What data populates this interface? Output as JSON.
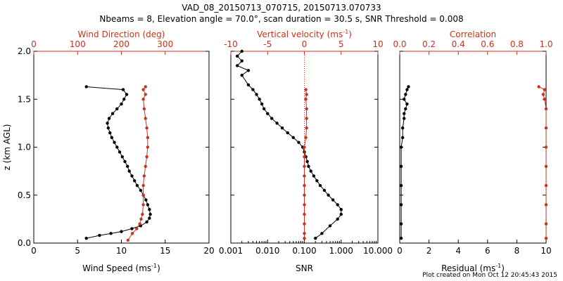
{
  "header": {
    "title": "VAD_08_20150713_070715, 20150713.070733",
    "subtitle": "Nbeams = 8, Elevation angle = 70.0°, scan duration = 30.5 s, SNR Threshold = 0.008"
  },
  "footer": {
    "credit": "Plot created on Mon Oct 12 20:45:43 2015"
  },
  "colors": {
    "black": "#000000",
    "red": "#c8321e",
    "axis": "#000000"
  },
  "chart_data": [
    {
      "type": "line",
      "ylabel": "z (km AGL)",
      "ylim": [
        0,
        2.0
      ],
      "yticks": [
        "0.0",
        "0.5",
        "1.0",
        "1.5",
        "2.0"
      ],
      "bottom_axis": {
        "label": "Wind Speed (ms",
        "sup": "-1",
        "close": ")",
        "lim": [
          0,
          20
        ],
        "ticks": [
          "0",
          "5",
          "10",
          "15",
          "20"
        ]
      },
      "top_axis": {
        "label": "Wind Direction (deg)",
        "lim": [
          0,
          400
        ],
        "ticks": [
          "0",
          "100",
          "200",
          "300"
        ]
      },
      "series": [
        {
          "color": "black",
          "axis": "bottom",
          "points": [
            [
              6.0,
              0.05
            ],
            [
              7.5,
              0.08
            ],
            [
              8.8,
              0.1
            ],
            [
              10.0,
              0.12
            ],
            [
              11.2,
              0.15
            ],
            [
              12.2,
              0.18
            ],
            [
              12.9,
              0.22
            ],
            [
              13.2,
              0.26
            ],
            [
              13.3,
              0.3
            ],
            [
              13.2,
              0.35
            ],
            [
              13.0,
              0.4
            ],
            [
              12.8,
              0.45
            ],
            [
              12.5,
              0.5
            ],
            [
              12.2,
              0.55
            ],
            [
              11.8,
              0.6
            ],
            [
              11.5,
              0.65
            ],
            [
              11.2,
              0.7
            ],
            [
              10.9,
              0.75
            ],
            [
              10.7,
              0.8
            ],
            [
              10.4,
              0.85
            ],
            [
              10.1,
              0.9
            ],
            [
              9.8,
              0.95
            ],
            [
              9.5,
              1.0
            ],
            [
              9.2,
              1.05
            ],
            [
              8.9,
              1.1
            ],
            [
              8.7,
              1.15
            ],
            [
              8.5,
              1.2
            ],
            [
              8.4,
              1.25
            ],
            [
              8.6,
              1.3
            ],
            [
              9.0,
              1.35
            ],
            [
              9.5,
              1.4
            ],
            [
              10.0,
              1.45
            ],
            [
              10.3,
              1.5
            ],
            [
              10.6,
              1.55
            ],
            [
              10.2,
              1.6
            ],
            [
              6.0,
              1.63
            ]
          ]
        },
        {
          "color": "red",
          "axis": "top",
          "points": [
            [
              215,
              0.03
            ],
            [
              225,
              0.1
            ],
            [
              235,
              0.15
            ],
            [
              242,
              0.2
            ],
            [
              245,
              0.25
            ],
            [
              248,
              0.3
            ],
            [
              250,
              0.4
            ],
            [
              250,
              0.5
            ],
            [
              250,
              0.6
            ],
            [
              252,
              0.7
            ],
            [
              255,
              0.8
            ],
            [
              258,
              0.9
            ],
            [
              260,
              1.0
            ],
            [
              260,
              1.1
            ],
            [
              258,
              1.2
            ],
            [
              255,
              1.3
            ],
            [
              252,
              1.4
            ],
            [
              250,
              1.5
            ],
            [
              255,
              1.55
            ],
            [
              250,
              1.6
            ],
            [
              255,
              1.63
            ]
          ]
        }
      ]
    },
    {
      "type": "line",
      "bottom_axis": {
        "label": "SNR",
        "lim": [
          0.001,
          10.0
        ],
        "log": true,
        "ticks": [
          "0.001",
          "0.010",
          "0.100",
          "1.000",
          "10.000"
        ]
      },
      "top_axis": {
        "label": "Vertical velocity (ms",
        "sup": "-1",
        "close": ")",
        "lim": [
          -10,
          10
        ],
        "ticks": [
          "-10",
          "-5",
          "0",
          "5",
          "10"
        ]
      },
      "series": [
        {
          "color": "black",
          "axis": "bottom",
          "points": [
            [
              0.2,
              0.05
            ],
            [
              0.3,
              0.1
            ],
            [
              0.5,
              0.18
            ],
            [
              0.8,
              0.25
            ],
            [
              1.0,
              0.3
            ],
            [
              1.0,
              0.35
            ],
            [
              0.8,
              0.4
            ],
            [
              0.6,
              0.45
            ],
            [
              0.45,
              0.5
            ],
            [
              0.35,
              0.55
            ],
            [
              0.27,
              0.6
            ],
            [
              0.22,
              0.65
            ],
            [
              0.18,
              0.7
            ],
            [
              0.15,
              0.75
            ],
            [
              0.13,
              0.8
            ],
            [
              0.12,
              0.85
            ],
            [
              0.11,
              0.9
            ],
            [
              0.1,
              0.95
            ],
            [
              0.09,
              1.0
            ],
            [
              0.07,
              1.05
            ],
            [
              0.05,
              1.1
            ],
            [
              0.035,
              1.15
            ],
            [
              0.025,
              1.2
            ],
            [
              0.018,
              1.25
            ],
            [
              0.013,
              1.3
            ],
            [
              0.01,
              1.35
            ],
            [
              0.008,
              1.4
            ],
            [
              0.007,
              1.45
            ],
            [
              0.006,
              1.5
            ],
            [
              0.005,
              1.55
            ],
            [
              0.004,
              1.6
            ],
            [
              0.003,
              1.65
            ],
            [
              0.002,
              1.75
            ],
            [
              0.003,
              1.8
            ],
            [
              0.0015,
              1.85
            ],
            [
              0.002,
              1.9
            ],
            [
              0.0015,
              1.95
            ],
            [
              0.002,
              2.0
            ]
          ]
        },
        {
          "color": "red",
          "axis": "top",
          "points": [
            [
              0,
              0.05
            ],
            [
              0,
              0.1
            ],
            [
              0,
              0.2
            ],
            [
              0,
              0.3
            ],
            [
              0,
              0.4
            ],
            [
              0,
              0.5
            ],
            [
              0,
              0.6
            ],
            [
              0,
              0.7
            ],
            [
              0,
              0.8
            ],
            [
              0,
              0.9
            ],
            [
              0,
              1.0
            ],
            [
              0.2,
              1.1
            ],
            [
              0.3,
              1.2
            ],
            [
              0.3,
              1.3
            ],
            [
              0.3,
              1.4
            ],
            [
              0.2,
              1.5
            ],
            [
              0.3,
              1.55
            ],
            [
              0.2,
              1.6
            ]
          ]
        }
      ]
    },
    {
      "type": "line",
      "bottom_axis": {
        "label": "Residual (ms",
        "sup": "-1",
        "close": ")",
        "lim": [
          0,
          10
        ],
        "ticks": [
          "0",
          "2",
          "4",
          "6",
          "8",
          "10"
        ]
      },
      "top_axis": {
        "label": "Correlation",
        "lim": [
          0,
          1.0
        ],
        "ticks": [
          "0.0",
          "0.2",
          "0.4",
          "0.6",
          "0.8",
          "1.0"
        ]
      },
      "series": [
        {
          "color": "black",
          "axis": "bottom",
          "points": [
            [
              0.1,
              0.05
            ],
            [
              0.1,
              0.2
            ],
            [
              0.1,
              0.4
            ],
            [
              0.1,
              0.6
            ],
            [
              0.1,
              0.8
            ],
            [
              0.1,
              1.0
            ],
            [
              0.2,
              1.1
            ],
            [
              0.2,
              1.2
            ],
            [
              0.3,
              1.3
            ],
            [
              0.3,
              1.35
            ],
            [
              0.4,
              1.4
            ],
            [
              0.5,
              1.45
            ],
            [
              0.3,
              1.5
            ],
            [
              0.4,
              1.55
            ],
            [
              0.5,
              1.6
            ],
            [
              0.6,
              1.63
            ]
          ]
        },
        {
          "color": "red",
          "axis": "top",
          "points": [
            [
              1.0,
              0.05
            ],
            [
              1.0,
              0.2
            ],
            [
              1.0,
              0.4
            ],
            [
              1.0,
              0.6
            ],
            [
              1.0,
              0.8
            ],
            [
              1.0,
              1.0
            ],
            [
              1.0,
              1.2
            ],
            [
              1.0,
              1.4
            ],
            [
              0.99,
              1.5
            ],
            [
              0.98,
              1.55
            ],
            [
              0.99,
              1.6
            ],
            [
              0.95,
              1.63
            ]
          ]
        }
      ]
    }
  ]
}
